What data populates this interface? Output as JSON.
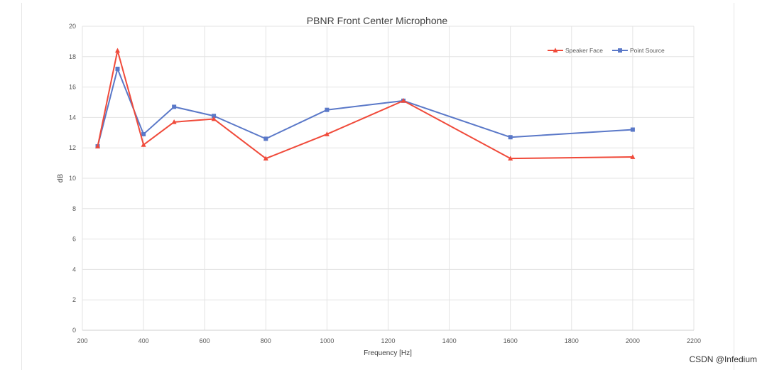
{
  "chart_data": {
    "type": "line",
    "title": "PBNR Front Center Microphone",
    "xlabel": "Frequency [Hz]",
    "ylabel": "dB",
    "xlim": [
      200,
      2200
    ],
    "ylim": [
      0,
      20
    ],
    "x_ticks": [
      200,
      400,
      600,
      800,
      1000,
      1200,
      1400,
      1600,
      1800,
      2000,
      2200
    ],
    "y_ticks": [
      0,
      2,
      4,
      6,
      8,
      10,
      12,
      14,
      16,
      18,
      20
    ],
    "grid": true,
    "legend_position": "top-right",
    "series": [
      {
        "name": "Speaker Face",
        "color": "#f04a3a",
        "marker": "triangle",
        "x": [
          250,
          315,
          400,
          500,
          630,
          800,
          1000,
          1250,
          1600,
          2000
        ],
        "y": [
          12.1,
          18.4,
          12.2,
          13.7,
          13.9,
          11.3,
          12.9,
          15.1,
          11.3,
          11.4
        ]
      },
      {
        "name": "Point Source",
        "color": "#5a78c8",
        "marker": "square",
        "x": [
          250,
          315,
          400,
          500,
          630,
          800,
          1000,
          1250,
          1600,
          2000
        ],
        "y": [
          12.1,
          17.2,
          12.9,
          14.7,
          14.1,
          12.6,
          14.5,
          15.1,
          12.7,
          13.2
        ]
      }
    ]
  },
  "watermark": "CSDN @Infedium"
}
